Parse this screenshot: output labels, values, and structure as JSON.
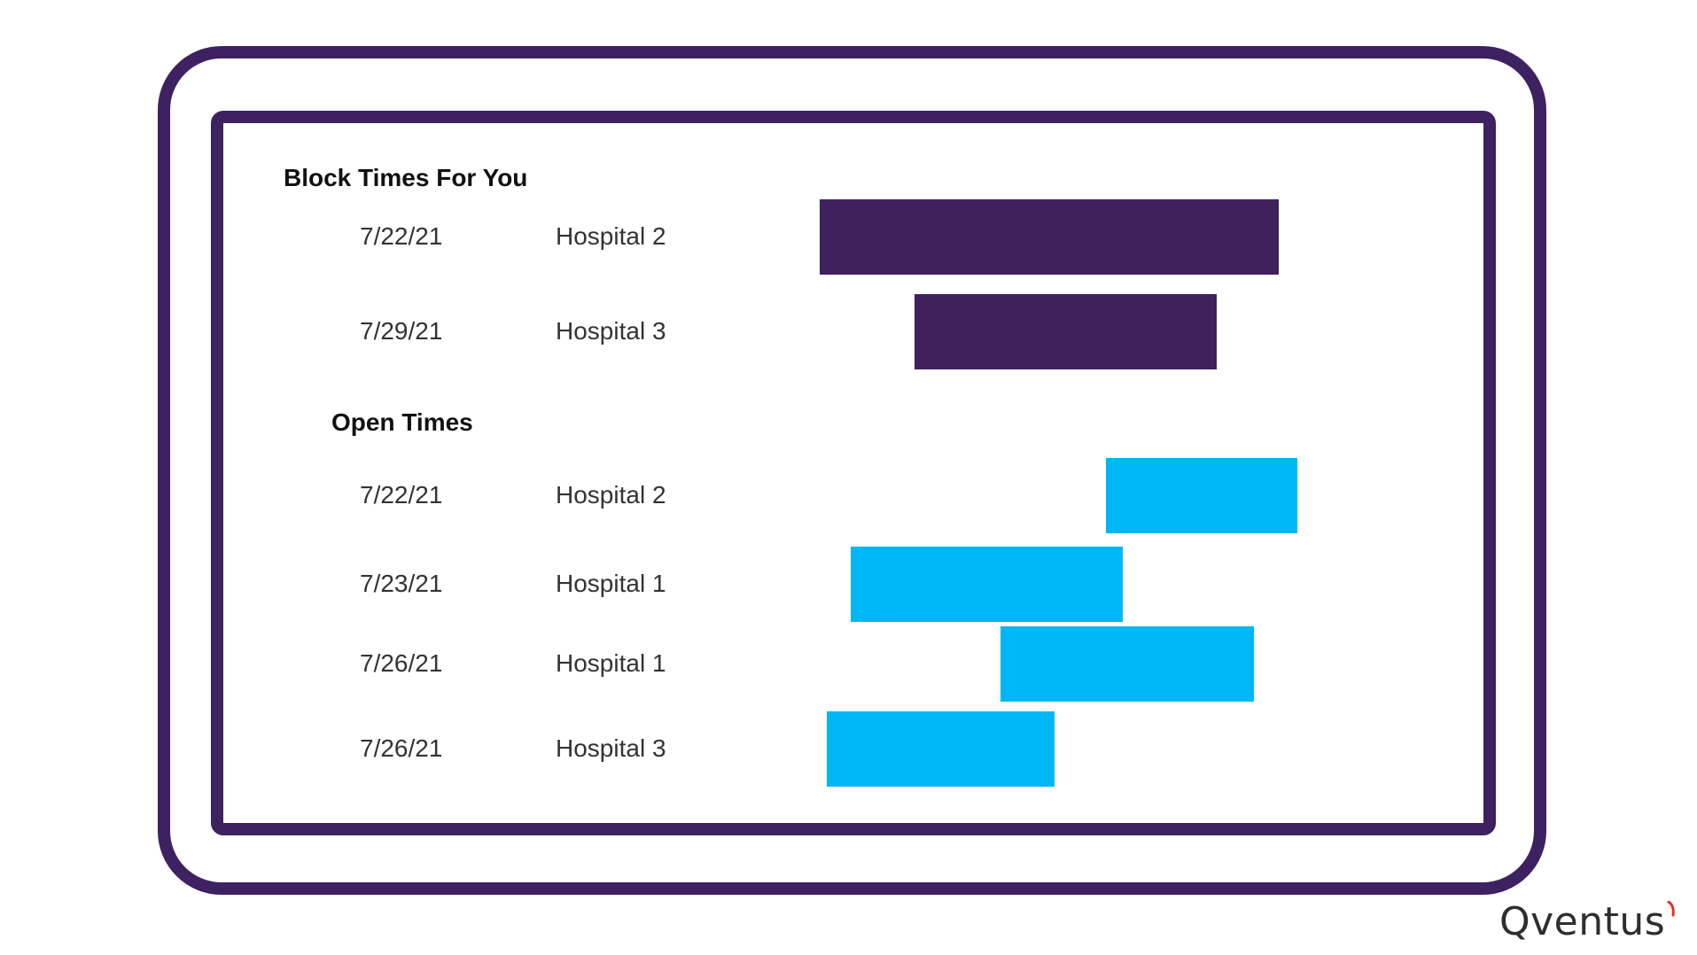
{
  "sections": [
    {
      "title": "Block Times For You",
      "kind": "block",
      "rows": [
        {
          "date": "7/22/21",
          "place": "Hospital 2",
          "bar_start": 0.0,
          "bar_end": 0.705
        },
        {
          "date": "7/29/21",
          "place": "Hospital 3",
          "bar_start": 0.146,
          "bar_end": 0.609
        }
      ]
    },
    {
      "title": "Open Times",
      "kind": "open",
      "rows": [
        {
          "date": "7/22/21",
          "place": "Hospital 2",
          "bar_start": 0.439,
          "bar_end": 0.734
        },
        {
          "date": "7/23/21",
          "place": "Hospital 1",
          "bar_start": 0.048,
          "bar_end": 0.466
        },
        {
          "date": "7/26/21",
          "place": "Hospital 1",
          "bar_start": 0.277,
          "bar_end": 0.667
        },
        {
          "date": "7/26/21",
          "place": "Hospital 3",
          "bar_start": 0.011,
          "bar_end": 0.361
        }
      ]
    }
  ],
  "colors": {
    "frame": "#3e2160",
    "block_bar": "#41205e",
    "open_bar": "#00b7f5",
    "logo_accent": "#e0301e"
  },
  "logo": {
    "text": "Qventus"
  }
}
